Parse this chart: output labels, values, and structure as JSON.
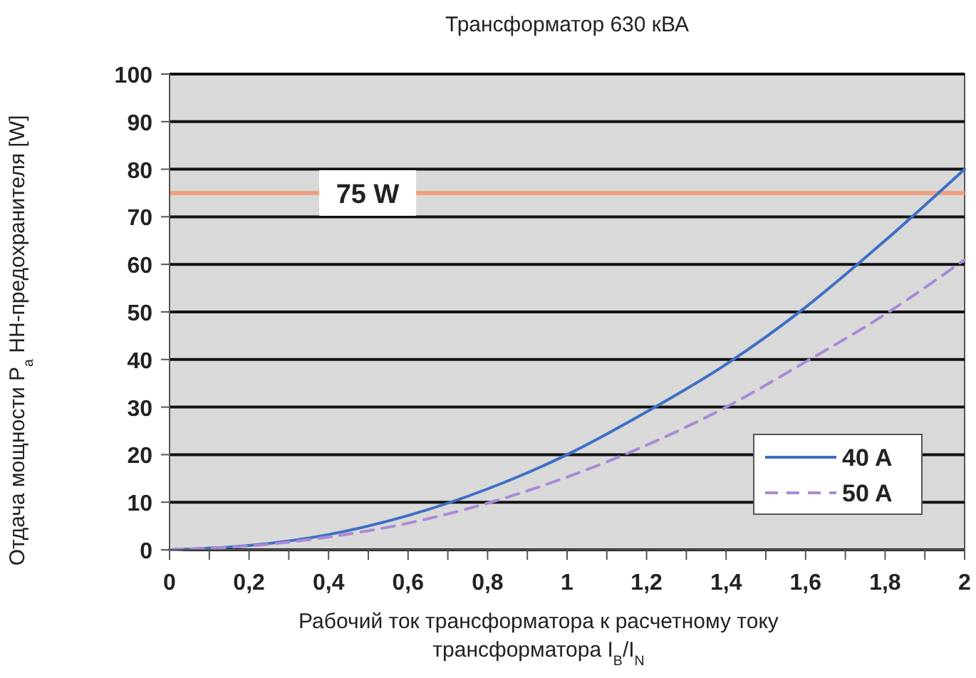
{
  "chart_data": {
    "type": "line",
    "title": "Трансформатор 630 кВА",
    "xlabel": "Рабочий ток трансформатора к расчетному току трансформатора I$_{B}$/I$_{N}$",
    "ylabel": "Отдача мощности P$_{a}$ НН-предохранителя [W]",
    "x": [
      0,
      0.2,
      0.4,
      0.6,
      0.8,
      1,
      1.2,
      1.4,
      1.6,
      1.8,
      2
    ],
    "series": [
      {
        "name": "40 A",
        "color": "#3d6fc4",
        "line_style": "solid",
        "values": [
          0,
          0.9,
          3.2,
          7.2,
          12.8,
          20,
          29,
          39,
          51,
          65,
          80
        ]
      },
      {
        "name": "50 A",
        "color": "#a98ad6",
        "line_style": "dashed",
        "values": [
          0,
          0.8,
          2.7,
          5.6,
          9.8,
          15.3,
          22,
          30,
          39.5,
          49.5,
          61
        ]
      }
    ],
    "xlim": [
      0,
      2
    ],
    "ylim": [
      0,
      100
    ],
    "xticks": [
      {
        "value": 0,
        "label": "0"
      },
      {
        "value": 0.1,
        "label": null
      },
      {
        "value": 0.2,
        "label": "0,2"
      },
      {
        "value": 0.3,
        "label": null
      },
      {
        "value": 0.4,
        "label": "0,4"
      },
      {
        "value": 0.5,
        "label": null
      },
      {
        "value": 0.6,
        "label": "0,6"
      },
      {
        "value": 0.7,
        "label": null
      },
      {
        "value": 0.8,
        "label": "0,8"
      },
      {
        "value": 0.9,
        "label": null
      },
      {
        "value": 1,
        "label": "1"
      },
      {
        "value": 1.1,
        "label": null
      },
      {
        "value": 1.2,
        "label": "1,2"
      },
      {
        "value": 1.3,
        "label": null
      },
      {
        "value": 1.4,
        "label": "1,4"
      },
      {
        "value": 1.5,
        "label": null
      },
      {
        "value": 1.6,
        "label": "1,6"
      },
      {
        "value": 1.7,
        "label": null
      },
      {
        "value": 1.8,
        "label": "1,8"
      },
      {
        "value": 1.9,
        "label": null
      },
      {
        "value": 2,
        "label": "2"
      }
    ],
    "yticks": [
      0,
      10,
      20,
      30,
      40,
      50,
      60,
      70,
      80,
      90,
      100
    ],
    "grid": "y",
    "legend": "bottom right",
    "marker": "none",
    "ref_lines": [
      {
        "axis": "y",
        "value": 75,
        "label": "75 W",
        "color": "#f0a080"
      }
    ]
  }
}
